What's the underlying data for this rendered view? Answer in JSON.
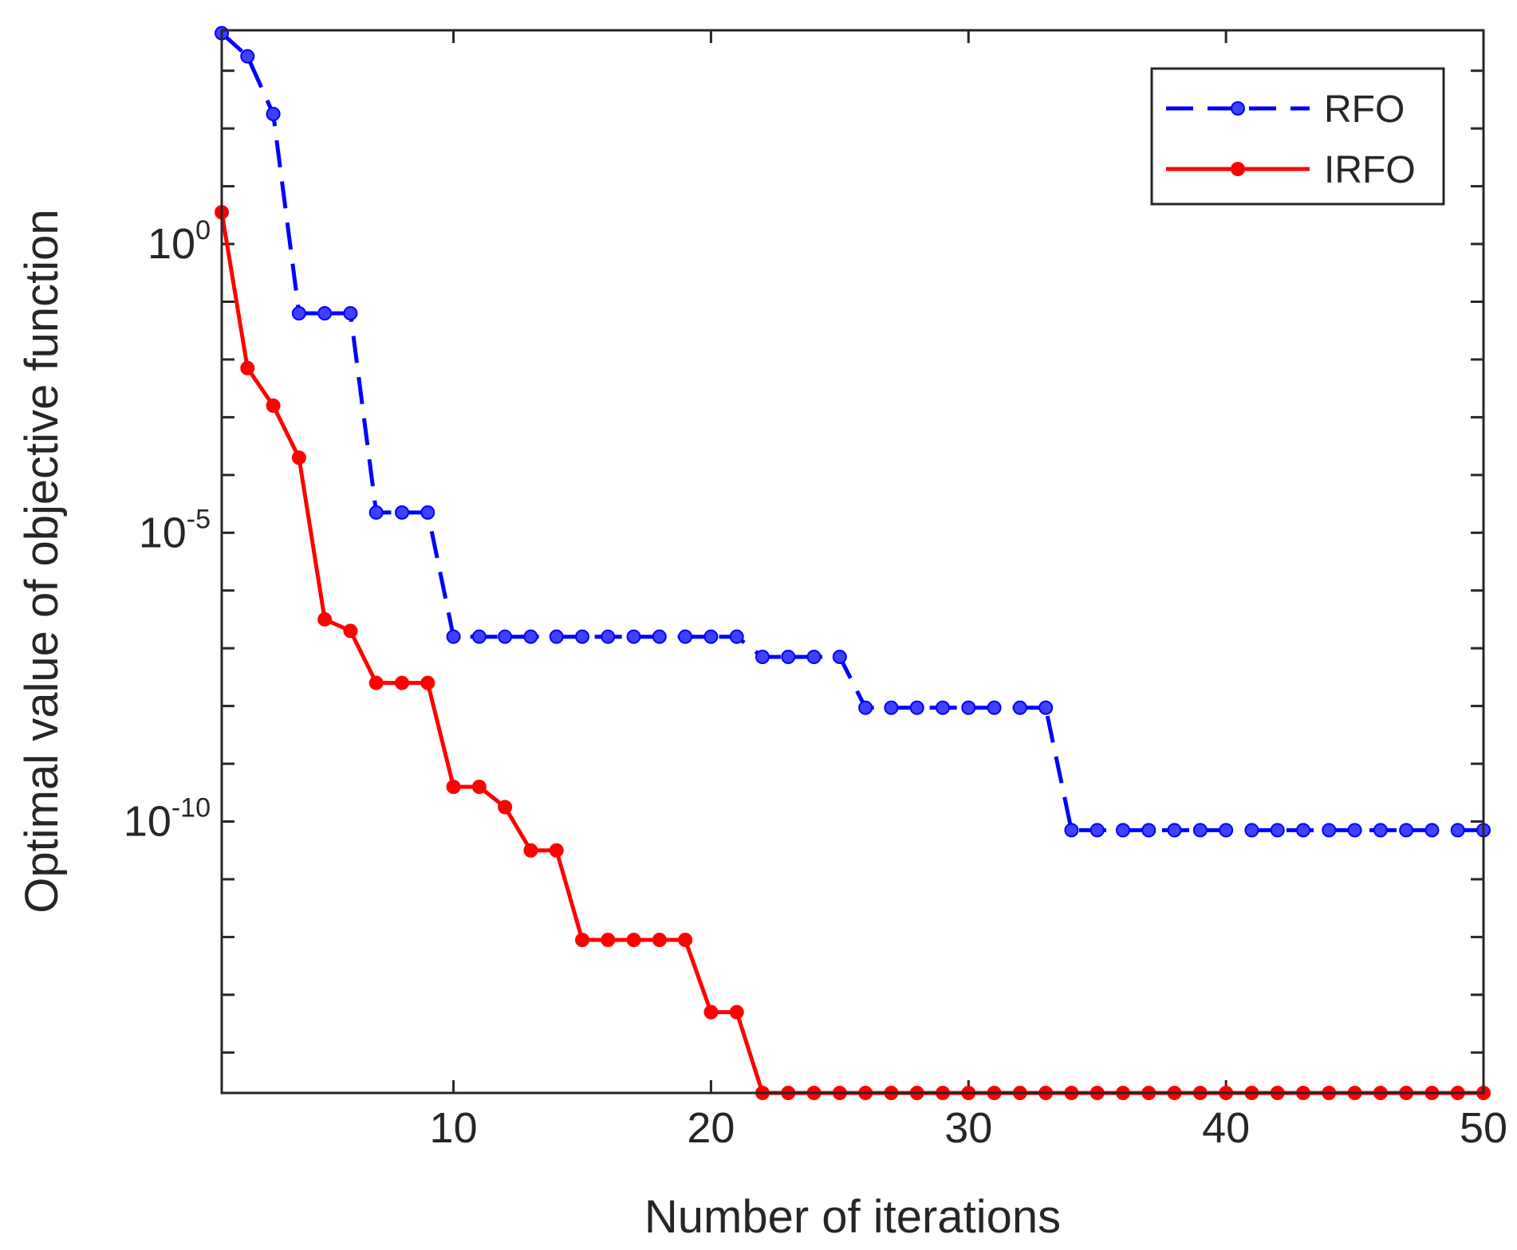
{
  "chart_data": {
    "type": "line",
    "title": "",
    "xlabel": "Number of iterations",
    "ylabel": "Optimal value of objective function",
    "yscale": "log",
    "xlim": [
      1,
      50
    ],
    "ylim_log10": [
      -14.7,
      3.7
    ],
    "x_ticks": [
      10,
      20,
      30,
      40,
      50
    ],
    "x_tick_labels": [
      "10",
      "20",
      "30",
      "40",
      "50"
    ],
    "y_ticks_log10": [
      0,
      -5,
      -10
    ],
    "y_tick_labels": [
      {
        "base": "10",
        "exp": "0"
      },
      {
        "base": "10",
        "exp": "-5"
      },
      {
        "base": "10",
        "exp": "-10"
      }
    ],
    "legend_position": "top-right",
    "x": [
      1,
      2,
      3,
      4,
      5,
      6,
      7,
      8,
      9,
      10,
      11,
      12,
      13,
      14,
      15,
      16,
      17,
      18,
      19,
      20,
      21,
      22,
      23,
      24,
      25,
      26,
      27,
      28,
      29,
      30,
      31,
      32,
      33,
      34,
      35,
      36,
      37,
      38,
      39,
      40,
      41,
      42,
      43,
      44,
      45,
      46,
      47,
      48,
      49,
      50
    ],
    "series": [
      {
        "name": "RFO",
        "color": "#0000ff",
        "marker_color": "#4040ff",
        "line_style": "dashed",
        "values_log10": [
          3.65,
          3.25,
          2.25,
          -1.2,
          -1.2,
          -1.2,
          -4.65,
          -4.65,
          -4.65,
          -6.8,
          -6.8,
          -6.8,
          -6.8,
          -6.8,
          -6.8,
          -6.8,
          -6.8,
          -6.8,
          -6.8,
          -6.8,
          -6.8,
          -7.15,
          -7.15,
          -7.15,
          -7.15,
          -8.03,
          -8.03,
          -8.03,
          -8.03,
          -8.03,
          -8.03,
          -8.03,
          -8.03,
          -10.15,
          -10.15,
          -10.15,
          -10.15,
          -10.15,
          -10.15,
          -10.15,
          -10.15,
          -10.15,
          -10.15,
          -10.15,
          -10.15,
          -10.15,
          -10.15,
          -10.15,
          -10.15,
          -10.15
        ]
      },
      {
        "name": "IRFO",
        "color": "#ff0000",
        "marker_color": "#ff0000",
        "line_style": "solid",
        "values_log10": [
          0.55,
          -2.15,
          -2.8,
          -3.7,
          -6.5,
          -6.7,
          -7.6,
          -7.6,
          -7.6,
          -9.4,
          -9.4,
          -9.75,
          -10.5,
          -10.5,
          -12.05,
          -12.05,
          -12.05,
          -12.05,
          -12.05,
          -13.3,
          -13.3,
          -14.7,
          -14.7,
          -14.7,
          -14.7,
          -14.7,
          -14.7,
          -14.7,
          -14.7,
          -14.7,
          -14.7,
          -14.7,
          -14.7,
          -14.7,
          -14.7,
          -14.7,
          -14.7,
          -14.7,
          -14.7,
          -14.7,
          -14.7,
          -14.7,
          -14.7,
          -14.7,
          -14.7,
          -14.7,
          -14.7,
          -14.7,
          -14.7,
          -14.7
        ]
      }
    ]
  }
}
